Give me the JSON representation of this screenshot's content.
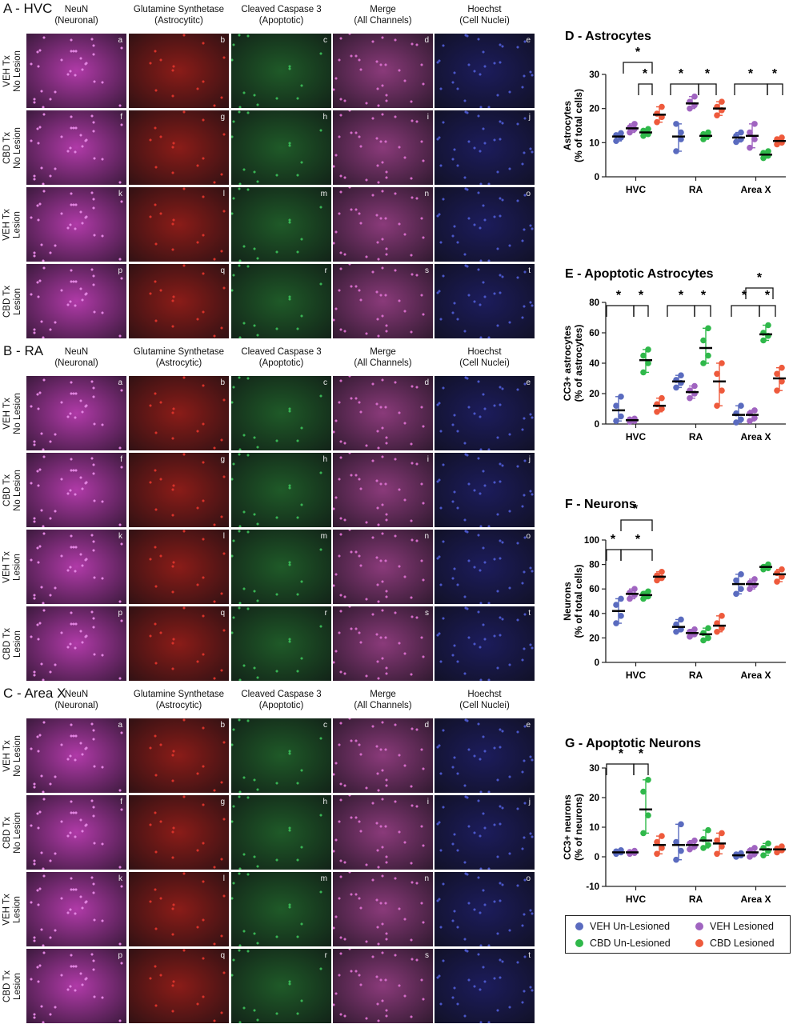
{
  "micrographs": {
    "sections": [
      {
        "title": "A - HVC",
        "headers": [
          "NeuN\n(Neuronal)",
          "Glutamine Synthetase\n(Astrocytitc)",
          "Cleaved Caspase 3\n(Apoptotic)",
          "Merge\n(All Channels)",
          "Hoechst\n(Cell Nuclei)"
        ],
        "rows": [
          "VEH Tx\nNo Lesion",
          "CBD Tx\nNo Lesion",
          "VEH Tx\nLesion",
          "CBD Tx\nLesion"
        ],
        "letters": [
          "a",
          "b",
          "c",
          "d",
          "e",
          "f",
          "g",
          "h",
          "i",
          "j",
          "k",
          "l",
          "m",
          "n",
          "o",
          "p",
          "q",
          "r",
          "s",
          "t"
        ]
      },
      {
        "title": "B - RA",
        "headers": [
          "NeuN\n(Neuronal)",
          "Glutamine Synthetase\n(Astrocytic)",
          "Cleaved Caspase 3\n(Apoptotic)",
          "Merge\n(All Channels)",
          "Hoechst\n(Cell Nuclei)"
        ],
        "rows": [
          "VEH Tx\nNo Lesion",
          "CBD Tx\nNo Lesion",
          "VEH Tx\nLesion",
          "CBD Tx\nLesion"
        ],
        "letters": [
          "a",
          "b",
          "c",
          "d",
          "e",
          "f",
          "g",
          "h",
          "i",
          "j",
          "k",
          "l",
          "m",
          "n",
          "o",
          "p",
          "q",
          "r",
          "s",
          "t"
        ]
      },
      {
        "title": "C - Area X",
        "headers": [
          "NeuN\n(Neuronal)",
          "Glutamine Synthetase\n(Astrocytic)",
          "Cleaved Caspase 3\n(Apoptotic)",
          "Merge\n(All Channels)",
          "Hoechst\n(Cell Nuclei)"
        ],
        "rows": [
          "VEH Tx\nNo Lesion",
          "CBD Tx\nNo Lesion",
          "VEH Tx\nLesion",
          "CBD Tx\nLesion"
        ],
        "letters": [
          "a",
          "b",
          "c",
          "d",
          "e",
          "f",
          "g",
          "h",
          "i",
          "j",
          "k",
          "l",
          "m",
          "n",
          "o",
          "p",
          "q",
          "r",
          "s",
          "t"
        ]
      }
    ],
    "channel_colors": {
      "neun": "#b03aa8",
      "gs": "#8a1c18",
      "cc3": "#1f5a28",
      "merge": "#8a3a7a",
      "hoechst": "#1c1c5c"
    }
  },
  "legend": [
    {
      "label": "VEH Un-Lesioned",
      "color": "#5a6bbf"
    },
    {
      "label": "VEH Lesioned",
      "color": "#a064c0"
    },
    {
      "label": "CBD Un-Lesioned",
      "color": "#2fb84a"
    },
    {
      "label": "CBD Lesioned",
      "color": "#ee5a3c"
    }
  ],
  "chart_data": [
    {
      "panel": "D",
      "type": "scatter",
      "title": "D - Astrocytes",
      "ylabel": "Astrocytes\n(% of total cells)",
      "ylim": [
        0,
        30
      ],
      "yticks": [
        0,
        10,
        20,
        30
      ],
      "categories": [
        "HVC",
        "RA",
        "Area X"
      ],
      "series": [
        {
          "name": "VEH Un-Lesioned",
          "means": [
            11.8,
            11.8,
            11.5
          ],
          "points": [
            [
              10.5,
              11.5,
              12.2,
              12.8
            ],
            [
              7.5,
              11,
              15.5,
              13
            ],
            [
              10.2,
              11,
              12,
              13
            ]
          ]
        },
        {
          "name": "VEH Lesioned",
          "means": [
            14.2,
            21.5,
            12.0
          ],
          "points": [
            [
              13,
              14,
              14.5,
              15.5
            ],
            [
              20,
              21,
              22,
              23.5
            ],
            [
              8.5,
              11,
              13,
              15.5
            ]
          ]
        },
        {
          "name": "CBD Lesioned",
          "means": [
            13.0,
            12.0,
            6.5
          ],
          "points": [
            [
              12,
              12.5,
              13.5,
              14
            ],
            [
              11,
              12,
              12.5,
              13
            ],
            [
              5.5,
              6.2,
              7,
              7.5
            ]
          ]
        },
        {
          "name": "CBD Un-Lesioned",
          "means": [
            18.2,
            20.0,
            10.5
          ],
          "points": [
            [
              16,
              17.5,
              18.5,
              20.5
            ],
            [
              18,
              19.5,
              20.5,
              22
            ],
            [
              9.5,
              10,
              11,
              11.5
            ]
          ]
        }
      ],
      "significance": [
        "*",
        "*",
        "*",
        "*",
        "*",
        "*",
        "*"
      ]
    },
    {
      "panel": "E",
      "type": "scatter",
      "title": "E - Apoptotic Astrocytes",
      "ylabel": "CC3+ astrocytes\n(% of astrocytes)",
      "ylim": [
        0,
        80
      ],
      "yticks": [
        0,
        20,
        40,
        60,
        80
      ],
      "categories": [
        "HVC",
        "RA",
        "Area X"
      ],
      "series": [
        {
          "name": "VEH Un-Lesioned",
          "means": [
            9,
            28,
            6
          ],
          "points": [
            [
              2,
              5,
              12,
              18
            ],
            [
              24,
              27,
              29,
              32
            ],
            [
              1,
              3,
              7,
              12
            ]
          ]
        },
        {
          "name": "VEH Lesioned",
          "means": [
            2.5,
            21,
            6
          ],
          "points": [
            [
              1.5,
              2,
              3,
              3.5
            ],
            [
              17,
              20,
              22,
              25
            ],
            [
              2,
              4,
              7,
              9
            ]
          ]
        },
        {
          "name": "CBD Lesioned",
          "means": [
            42,
            50,
            59
          ],
          "points": [
            [
              34,
              40,
              45,
              49
            ],
            [
              40,
              45,
              55,
              63
            ],
            [
              55,
              58,
              60,
              65
            ]
          ]
        },
        {
          "name": "CBD Un-Lesioned",
          "means": [
            12,
            28,
            30
          ],
          "points": [
            [
              8,
              10,
              13,
              17
            ],
            [
              12,
              22,
              33,
              40
            ],
            [
              22,
              28,
              33,
              37
            ]
          ]
        }
      ],
      "significance": [
        "*",
        "*",
        "*",
        "*",
        "*",
        "*",
        "*"
      ]
    },
    {
      "panel": "F",
      "type": "scatter",
      "title": "F - Neurons",
      "ylabel": "Neurons\n(% of total cells)",
      "ylim": [
        0,
        100
      ],
      "yticks": [
        0,
        20,
        40,
        60,
        80,
        100
      ],
      "categories": [
        "HVC",
        "RA",
        "Area X"
      ],
      "series": [
        {
          "name": "VEH Un-Lesioned",
          "means": [
            42,
            29,
            64
          ],
          "points": [
            [
              32,
              38,
              47,
              52
            ],
            [
              25,
              27,
              31,
              35
            ],
            [
              56,
              60,
              67,
              72
            ]
          ]
        },
        {
          "name": "VEH Lesioned",
          "means": [
            56,
            24,
            64
          ],
          "points": [
            [
              52,
              55,
              57,
              60
            ],
            [
              21,
              23,
              25,
              27
            ],
            [
              60,
              63,
              65,
              68
            ]
          ]
        },
        {
          "name": "CBD Lesioned",
          "means": [
            55,
            23,
            78
          ],
          "points": [
            [
              52,
              54,
              56,
              58
            ],
            [
              18,
              20,
              24,
              28
            ],
            [
              76,
              77,
              78,
              80
            ]
          ]
        },
        {
          "name": "CBD Un-Lesioned",
          "means": [
            70,
            30,
            72
          ],
          "points": [
            [
              67,
              69,
              71,
              74
            ],
            [
              25,
              28,
              32,
              38
            ],
            [
              66,
              70,
              73,
              76
            ]
          ]
        }
      ],
      "significance": [
        "*",
        "*",
        "*",
        "*"
      ]
    },
    {
      "panel": "G",
      "type": "scatter",
      "title": "G - Apoptotic Neurons",
      "ylabel": "CC3+ neurons\n(% of neurons)",
      "ylim": [
        -10,
        30
      ],
      "yticks": [
        -10,
        0,
        10,
        20,
        30
      ],
      "categories": [
        "HVC",
        "RA",
        "Area X"
      ],
      "series": [
        {
          "name": "VEH Un-Lesioned",
          "means": [
            1.5,
            4,
            0.5
          ],
          "points": [
            [
              1,
              1.5,
              1.8,
              2.2
            ],
            [
              -1,
              2,
              5,
              11
            ],
            [
              0,
              0.5,
              0.8,
              1.2
            ]
          ]
        },
        {
          "name": "VEH Lesioned",
          "means": [
            1.5,
            4,
            1.5
          ],
          "points": [
            [
              1,
              1.3,
              1.6,
              2
            ],
            [
              2.5,
              3.5,
              4.5,
              5.5
            ],
            [
              0,
              1,
              2,
              3
            ]
          ]
        },
        {
          "name": "CBD Lesioned",
          "means": [
            16,
            5.5,
            2.5
          ],
          "points": [
            [
              8,
              14,
              22,
              26
            ],
            [
              3,
              4,
              6,
              9
            ],
            [
              0.5,
              2,
              3,
              4.5
            ]
          ]
        },
        {
          "name": "CBD Un-Lesioned",
          "means": [
            4,
            4.5,
            2.5
          ],
          "points": [
            [
              1,
              3,
              5,
              7
            ],
            [
              1,
              3.5,
              5.5,
              8
            ],
            [
              1.5,
              2.2,
              2.8,
              3.5
            ]
          ]
        }
      ],
      "significance": [
        "*",
        "*"
      ]
    }
  ]
}
